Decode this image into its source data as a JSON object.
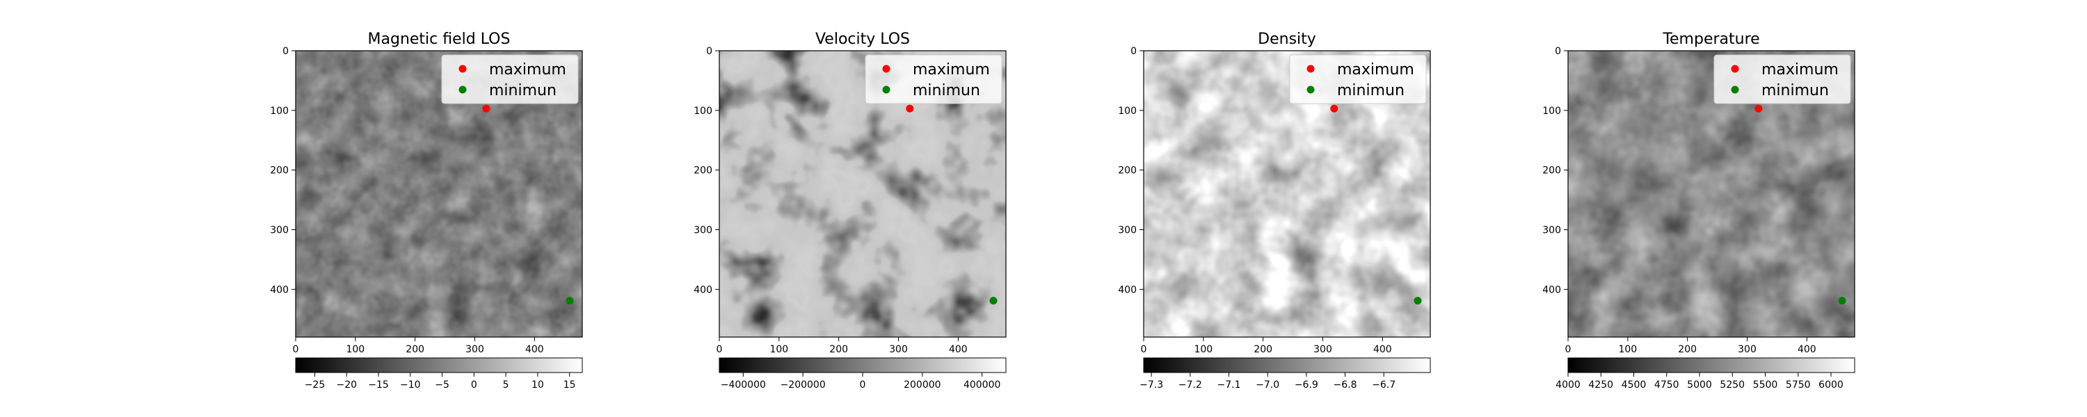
{
  "legend_labels": [
    "maximum",
    "minimun"
  ],
  "legend_colors": [
    "#ff0000",
    "#008000"
  ],
  "maximum_point": {
    "x": 319,
    "y": 97
  },
  "minimum_point": {
    "x": 459,
    "y": 419
  },
  "chart_data": [
    {
      "type": "heatmap",
      "title": "Magnetic field LOS",
      "xlabel": "",
      "ylabel": "",
      "x_ticks": [
        0,
        100,
        200,
        300,
        400
      ],
      "y_ticks": [
        0,
        100,
        200,
        300,
        400
      ],
      "xlim": [
        0,
        480
      ],
      "ylim": [
        480,
        0
      ],
      "colormap": "gray",
      "colorbar": {
        "range": [
          -28,
          17
        ],
        "ticks": [
          -25,
          -20,
          -15,
          -10,
          -5,
          0,
          5,
          10,
          15
        ],
        "tick_labels": [
          "−25",
          "−20",
          "−15",
          "−10",
          "−5",
          "0",
          "5",
          "10",
          "15"
        ]
      },
      "texture": "magnetic",
      "legend": {
        "placement": "upper right"
      }
    },
    {
      "type": "heatmap",
      "title": "Velocity LOS",
      "xlabel": "",
      "ylabel": "",
      "x_ticks": [
        0,
        100,
        200,
        300,
        400
      ],
      "y_ticks": [
        0,
        100,
        200,
        300,
        400
      ],
      "xlim": [
        0,
        480
      ],
      "ylim": [
        480,
        0
      ],
      "colormap": "gray",
      "colorbar": {
        "range": [
          -480000,
          480000
        ],
        "ticks": [
          -400000,
          -200000,
          0,
          200000,
          400000
        ],
        "tick_labels": [
          "−400000",
          "−200000",
          "0",
          "200000",
          "400000"
        ]
      },
      "texture": "velocity",
      "legend": {
        "placement": "upper right"
      }
    },
    {
      "type": "heatmap",
      "title": "Density",
      "xlabel": "",
      "ylabel": "",
      "x_ticks": [
        0,
        100,
        200,
        300,
        400
      ],
      "y_ticks": [
        0,
        100,
        200,
        300,
        400
      ],
      "xlim": [
        0,
        480
      ],
      "ylim": [
        480,
        0
      ],
      "colormap": "gray",
      "colorbar": {
        "range": [
          -7.32,
          -6.58
        ],
        "ticks": [
          -7.3,
          -7.2,
          -7.1,
          -7.0,
          -6.9,
          -6.8,
          -6.7
        ],
        "tick_labels": [
          "−7.3",
          "−7.2",
          "−7.1",
          "−7.0",
          "−6.9",
          "−6.8",
          "−6.7"
        ]
      },
      "texture": "density",
      "legend": {
        "placement": "upper right"
      }
    },
    {
      "type": "heatmap",
      "title": "Temperature",
      "xlabel": "",
      "ylabel": "",
      "x_ticks": [
        0,
        100,
        200,
        300,
        400
      ],
      "y_ticks": [
        0,
        100,
        200,
        300,
        400
      ],
      "xlim": [
        0,
        480
      ],
      "ylim": [
        480,
        0
      ],
      "colormap": "gray",
      "colorbar": {
        "range": [
          4000,
          6180
        ],
        "ticks": [
          4000,
          4250,
          4500,
          4750,
          5000,
          5250,
          5500,
          5750,
          6000
        ],
        "tick_labels": [
          "4000",
          "4250",
          "4500",
          "4750",
          "5000",
          "5250",
          "5500",
          "5750",
          "6000"
        ]
      },
      "texture": "temperature",
      "legend": {
        "placement": "upper right"
      }
    }
  ]
}
